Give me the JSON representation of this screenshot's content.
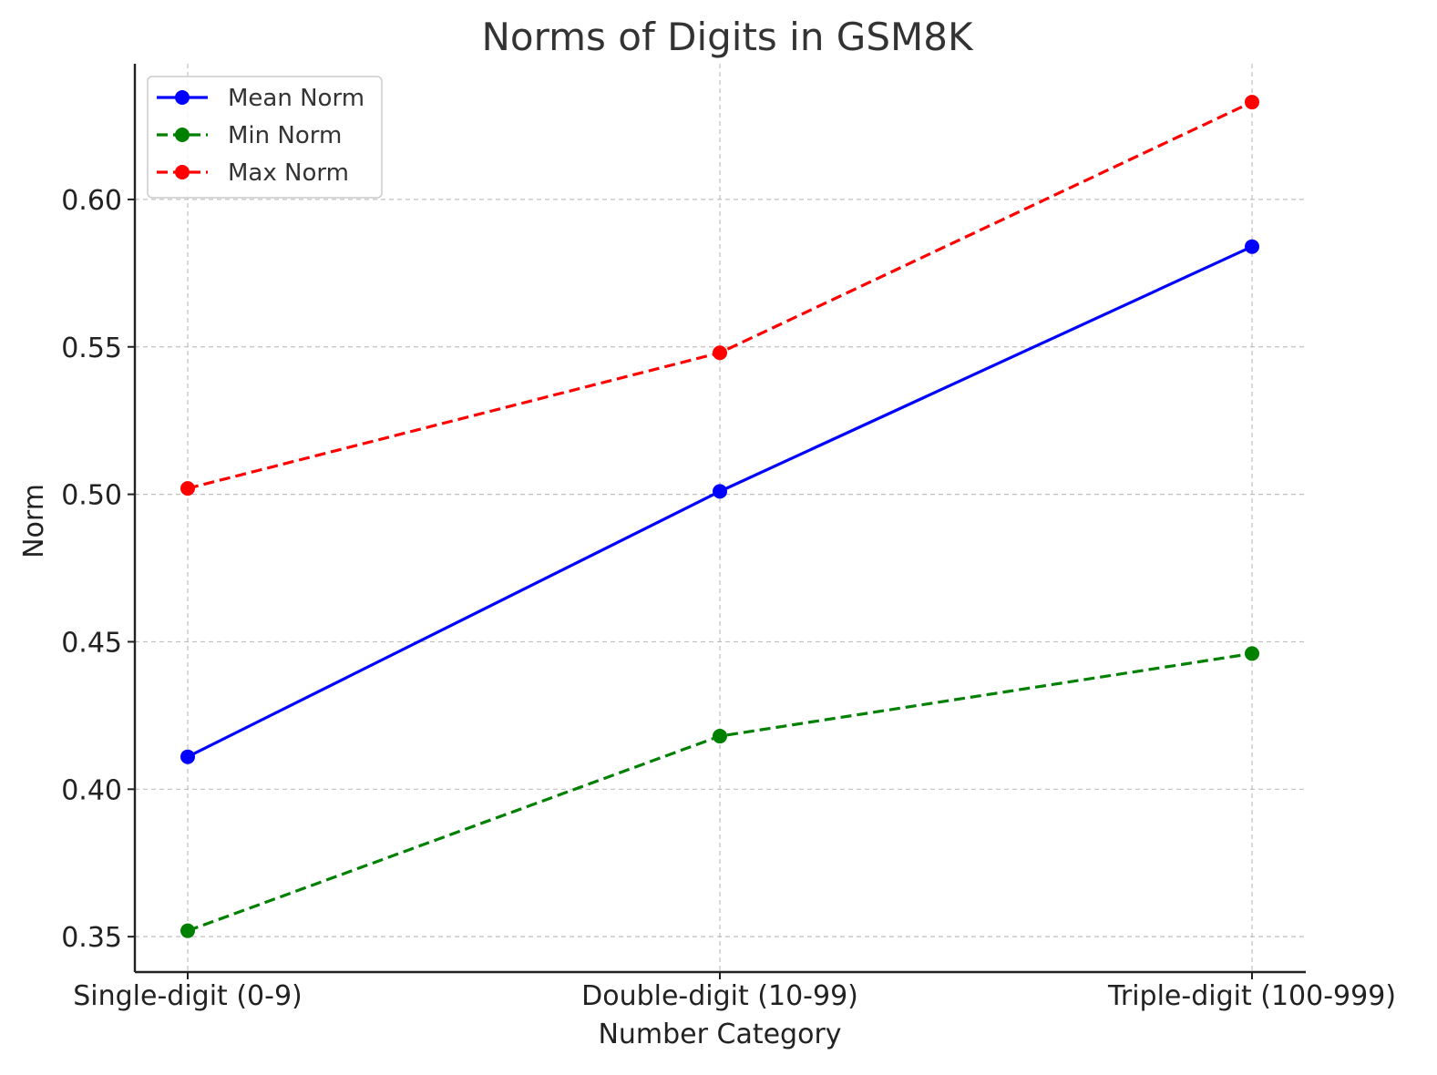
{
  "chart_data": {
    "type": "line",
    "title": "Norms of Digits in GSM8K",
    "xlabel": "Number Category",
    "ylabel": "Norm",
    "categories": [
      "Single-digit (0-9)",
      "Double-digit (10-99)",
      "Triple-digit (100-999)"
    ],
    "ylim": [
      0.338,
      0.646
    ],
    "yticks": [
      0.35,
      0.4,
      0.45,
      0.5,
      0.55,
      0.6
    ],
    "ytick_labels": [
      "0.35",
      "0.40",
      "0.45",
      "0.50",
      "0.55",
      "0.60"
    ],
    "grid": true,
    "legend_position": "top-left",
    "series": [
      {
        "name": "Mean Norm",
        "values": [
          0.411,
          0.501,
          0.584
        ],
        "color": "#0000ff",
        "linestyle": "solid"
      },
      {
        "name": "Min Norm",
        "values": [
          0.352,
          0.418,
          0.446
        ],
        "color": "#008000",
        "linestyle": "dashed"
      },
      {
        "name": "Max Norm",
        "values": [
          0.502,
          0.548,
          0.633
        ],
        "color": "#ff0000",
        "linestyle": "dashed"
      }
    ]
  }
}
